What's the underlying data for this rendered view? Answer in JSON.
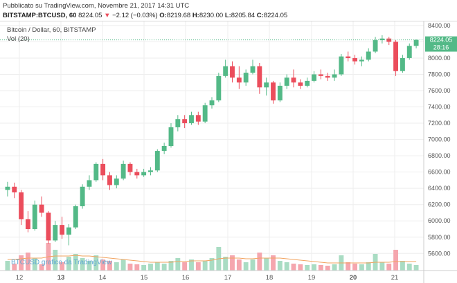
{
  "header": {
    "published": "Pubblicato su TradingView.com, Novembre 21, 2017 14:31 UTC",
    "symbol": "BITSTAMP:BTCUSD, 60",
    "last": "8224.05",
    "change_arrow": "▼",
    "change": "−2.12 (−0.03%)",
    "o_label": "O:",
    "o_value": "8219.68",
    "h_label": "H:",
    "h_value": "8230.00",
    "l_label": "L:",
    "l_value": "8205.84",
    "c_label": "C:",
    "c_value": "8224.05"
  },
  "legend": {
    "series_title": "Bitcoin / Dollar, 60, BITSTAMP",
    "volume_label": "Vol (20)"
  },
  "watermark": "BTCUSD grafico da TradingView",
  "price_badge": {
    "price": "8224.05",
    "countdown": "28:16"
  },
  "colors": {
    "up": "#53b987",
    "down": "#eb4d5c",
    "vol_up": "#a9dcc3",
    "vol_down": "#f5a6ae",
    "vol_ma": "#f2a35e",
    "price_line": "#53b987",
    "grid": "#eeeeee",
    "axis_text": "#555555",
    "watermark": "#5fa8d3",
    "change_down": "#eb4d5c"
  },
  "chart_data": {
    "type": "candlestick",
    "title": "Bitcoin / Dollar, 60, BITSTAMP",
    "ylabel": "",
    "xlabel": "",
    "y_axis": {
      "ylim": [
        5390,
        8450
      ],
      "ticks": [
        "8400.00",
        "8200.00",
        "8000.00",
        "7800.00",
        "7600.00",
        "7400.00",
        "7200.00",
        "7000.00",
        "6800.00",
        "6600.00",
        "6400.00",
        "6200.00",
        "6000.00",
        "5800.00",
        "5600.00"
      ]
    },
    "x_axis": {
      "ticks": [
        "12",
        "13",
        "14",
        "15",
        "16",
        "17",
        "18",
        "19",
        "20",
        "21"
      ],
      "bold_ticks": [
        "13",
        "20"
      ]
    },
    "grid": true,
    "candles": [
      {
        "t": "11-11 12:00",
        "o": 6380,
        "h": 6480,
        "l": 6300,
        "c": 6420
      },
      {
        "t": "11-11 16:00",
        "o": 6420,
        "h": 6470,
        "l": 6280,
        "c": 6350
      },
      {
        "t": "11-11 20:00",
        "o": 6350,
        "h": 6380,
        "l": 5950,
        "c": 6020
      },
      {
        "t": "11-12 00:00",
        "o": 6020,
        "h": 6120,
        "l": 5860,
        "c": 5900
      },
      {
        "t": "11-12 04:00",
        "o": 5900,
        "h": 6250,
        "l": 5880,
        "c": 6200
      },
      {
        "t": "11-12 08:00",
        "o": 6200,
        "h": 6300,
        "l": 6050,
        "c": 6100
      },
      {
        "t": "11-12 12:00",
        "o": 6100,
        "h": 6120,
        "l": 5720,
        "c": 5760
      },
      {
        "t": "11-12 16:00",
        "o": 5760,
        "h": 6000,
        "l": 5740,
        "c": 5950
      },
      {
        "t": "11-12 20:00",
        "o": 5950,
        "h": 6050,
        "l": 5780,
        "c": 5830
      },
      {
        "t": "11-13 00:00",
        "o": 5830,
        "h": 5960,
        "l": 5700,
        "c": 5920
      },
      {
        "t": "11-13 04:00",
        "o": 5920,
        "h": 6200,
        "l": 5900,
        "c": 6180
      },
      {
        "t": "11-13 08:00",
        "o": 6180,
        "h": 6450,
        "l": 6150,
        "c": 6420
      },
      {
        "t": "11-13 12:00",
        "o": 6420,
        "h": 6560,
        "l": 6380,
        "c": 6500
      },
      {
        "t": "11-13 16:00",
        "o": 6500,
        "h": 6720,
        "l": 6480,
        "c": 6700
      },
      {
        "t": "11-13 20:00",
        "o": 6700,
        "h": 6760,
        "l": 6500,
        "c": 6560
      },
      {
        "t": "11-14 00:00",
        "o": 6560,
        "h": 6600,
        "l": 6380,
        "c": 6440
      },
      {
        "t": "11-14 04:00",
        "o": 6440,
        "h": 6560,
        "l": 6400,
        "c": 6520
      },
      {
        "t": "11-14 08:00",
        "o": 6520,
        "h": 6740,
        "l": 6500,
        "c": 6700
      },
      {
        "t": "11-14 12:00",
        "o": 6700,
        "h": 6720,
        "l": 6560,
        "c": 6600
      },
      {
        "t": "11-14 16:00",
        "o": 6600,
        "h": 6640,
        "l": 6520,
        "c": 6560
      },
      {
        "t": "11-14 20:00",
        "o": 6560,
        "h": 6640,
        "l": 6540,
        "c": 6600
      },
      {
        "t": "11-15 00:00",
        "o": 6600,
        "h": 6660,
        "l": 6560,
        "c": 6620
      },
      {
        "t": "11-15 04:00",
        "o": 6620,
        "h": 6880,
        "l": 6600,
        "c": 6860
      },
      {
        "t": "11-15 08:00",
        "o": 6860,
        "h": 6960,
        "l": 6820,
        "c": 6920
      },
      {
        "t": "11-15 12:00",
        "o": 6920,
        "h": 7200,
        "l": 6900,
        "c": 7150
      },
      {
        "t": "11-15 16:00",
        "o": 7150,
        "h": 7300,
        "l": 7100,
        "c": 7250
      },
      {
        "t": "11-15 20:00",
        "o": 7250,
        "h": 7300,
        "l": 7140,
        "c": 7200
      },
      {
        "t": "11-16 00:00",
        "o": 7200,
        "h": 7340,
        "l": 7180,
        "c": 7300
      },
      {
        "t": "11-16 04:00",
        "o": 7300,
        "h": 7340,
        "l": 7180,
        "c": 7220
      },
      {
        "t": "11-16 08:00",
        "o": 7220,
        "h": 7450,
        "l": 7200,
        "c": 7420
      },
      {
        "t": "11-16 12:00",
        "o": 7420,
        "h": 7520,
        "l": 7380,
        "c": 7480
      },
      {
        "t": "11-16 16:00",
        "o": 7480,
        "h": 7820,
        "l": 7460,
        "c": 7780
      },
      {
        "t": "11-16 20:00",
        "o": 7780,
        "h": 7980,
        "l": 7760,
        "c": 7900
      },
      {
        "t": "11-17 00:00",
        "o": 7900,
        "h": 7960,
        "l": 7700,
        "c": 7760
      },
      {
        "t": "11-17 04:00",
        "o": 7760,
        "h": 7900,
        "l": 7620,
        "c": 7700
      },
      {
        "t": "11-17 08:00",
        "o": 7700,
        "h": 7860,
        "l": 7660,
        "c": 7820
      },
      {
        "t": "11-17 12:00",
        "o": 7820,
        "h": 7980,
        "l": 7800,
        "c": 7900
      },
      {
        "t": "11-17 16:00",
        "o": 7900,
        "h": 7940,
        "l": 7560,
        "c": 7640
      },
      {
        "t": "11-17 20:00",
        "o": 7640,
        "h": 7760,
        "l": 7540,
        "c": 7700
      },
      {
        "t": "11-18 00:00",
        "o": 7700,
        "h": 7720,
        "l": 7440,
        "c": 7480
      },
      {
        "t": "11-18 04:00",
        "o": 7480,
        "h": 7700,
        "l": 7460,
        "c": 7660
      },
      {
        "t": "11-18 08:00",
        "o": 7660,
        "h": 7800,
        "l": 7620,
        "c": 7760
      },
      {
        "t": "11-18 12:00",
        "o": 7760,
        "h": 7860,
        "l": 7640,
        "c": 7700
      },
      {
        "t": "11-18 16:00",
        "o": 7700,
        "h": 7740,
        "l": 7620,
        "c": 7660
      },
      {
        "t": "11-18 20:00",
        "o": 7660,
        "h": 7760,
        "l": 7640,
        "c": 7720
      },
      {
        "t": "11-19 00:00",
        "o": 7720,
        "h": 7840,
        "l": 7700,
        "c": 7800
      },
      {
        "t": "11-19 04:00",
        "o": 7800,
        "h": 7860,
        "l": 7740,
        "c": 7780
      },
      {
        "t": "11-19 08:00",
        "o": 7780,
        "h": 7820,
        "l": 7720,
        "c": 7760
      },
      {
        "t": "11-19 12:00",
        "o": 7760,
        "h": 7860,
        "l": 7720,
        "c": 7800
      },
      {
        "t": "11-19 16:00",
        "o": 7800,
        "h": 8050,
        "l": 7780,
        "c": 8020
      },
      {
        "t": "11-19 20:00",
        "o": 8020,
        "h": 8080,
        "l": 7960,
        "c": 8000
      },
      {
        "t": "11-20 00:00",
        "o": 8000,
        "h": 8040,
        "l": 7920,
        "c": 7960
      },
      {
        "t": "11-20 04:00",
        "o": 7960,
        "h": 8020,
        "l": 7900,
        "c": 7980
      },
      {
        "t": "11-20 08:00",
        "o": 7980,
        "h": 8120,
        "l": 7960,
        "c": 8080
      },
      {
        "t": "11-20 12:00",
        "o": 8080,
        "h": 8260,
        "l": 8060,
        "c": 8220
      },
      {
        "t": "11-20 16:00",
        "o": 8220,
        "h": 8280,
        "l": 8180,
        "c": 8240
      },
      {
        "t": "11-20 20:00",
        "o": 8240,
        "h": 8260,
        "l": 8160,
        "c": 8200
      },
      {
        "t": "11-21 00:00",
        "o": 8200,
        "h": 8220,
        "l": 7780,
        "c": 7840
      },
      {
        "t": "11-21 04:00",
        "o": 7840,
        "h": 8040,
        "l": 7820,
        "c": 8000
      },
      {
        "t": "11-21 08:00",
        "o": 8000,
        "h": 8180,
        "l": 7980,
        "c": 8150
      },
      {
        "t": "11-21 12:00",
        "o": 8150,
        "h": 8230,
        "l": 8120,
        "c": 8224
      }
    ],
    "volume": [
      14,
      10,
      22,
      26,
      18,
      9,
      40,
      30,
      12,
      20,
      24,
      18,
      14,
      22,
      16,
      14,
      12,
      16,
      10,
      9,
      8,
      10,
      12,
      10,
      14,
      18,
      12,
      16,
      12,
      14,
      18,
      34,
      20,
      22,
      16,
      12,
      16,
      26,
      18,
      22,
      14,
      12,
      10,
      9,
      8,
      9,
      8,
      7,
      9,
      22,
      12,
      10,
      9,
      12,
      24,
      12,
      10,
      30,
      14,
      10,
      8
    ],
    "volume_ma": [
      16,
      16,
      17,
      18,
      18,
      18,
      20,
      21,
      21,
      21,
      22,
      21,
      21,
      20,
      19,
      18,
      17,
      16,
      15,
      14,
      13,
      12,
      12,
      12,
      12,
      13,
      13,
      14,
      14,
      14,
      15,
      17,
      18,
      18,
      18,
      17,
      17,
      18,
      18,
      18,
      18,
      17,
      16,
      15,
      14,
      13,
      12,
      11,
      11,
      11,
      11,
      11,
      11,
      11,
      12,
      12,
      12,
      13,
      13,
      13,
      13
    ]
  }
}
